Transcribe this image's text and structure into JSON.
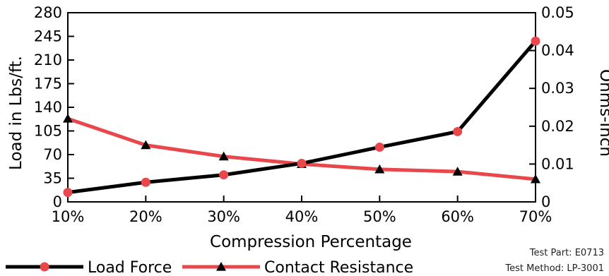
{
  "chart_data": {
    "type": "line",
    "title": "",
    "xlabel": "Compression Percentage",
    "ylabel": "Load in Lbs/ft.",
    "y2label": "Ohms-Inch",
    "x": [
      "10%",
      "20%",
      "30%",
      "40%",
      "50%",
      "60%",
      "70%"
    ],
    "ylim": [
      0,
      280
    ],
    "y_ticks": [
      "0",
      "35",
      "70",
      "105",
      "140",
      "175",
      "210",
      "245",
      "280"
    ],
    "y2lim": [
      0,
      0.05
    ],
    "y2_ticks": [
      "0",
      "0.01",
      "0.02",
      "0.03",
      "0.04",
      "0.05"
    ],
    "grid": false,
    "legend_position": "bottom-left",
    "series": [
      {
        "name": "Load Force",
        "axis": "left",
        "marker": "circle",
        "line_color": "#000000",
        "marker_color": "#e8474c",
        "values": [
          14,
          29,
          40,
          57,
          81,
          104,
          238
        ]
      },
      {
        "name": "Contact Resistance",
        "axis": "right",
        "marker": "triangle",
        "line_color": "#e8474c",
        "marker_color": "#000000",
        "values": [
          0.022,
          0.015,
          0.012,
          0.01,
          0.0086,
          0.008,
          0.006
        ]
      }
    ]
  },
  "notes": {
    "test_part": "Test Part: E0713",
    "test_method": "Test Method: LP-3001"
  }
}
